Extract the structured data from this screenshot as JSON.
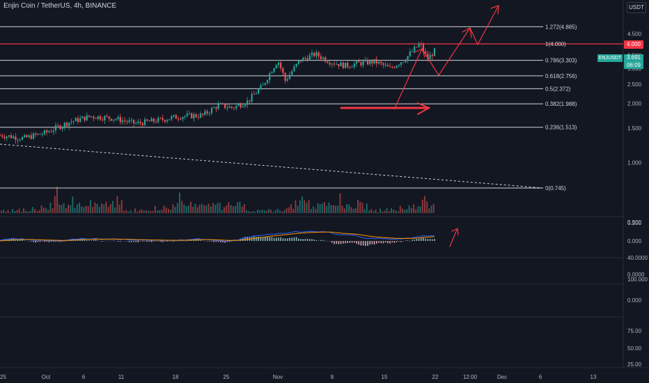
{
  "header": {
    "title": "Enjin Coin / TetherUS, 4h, BINANCE",
    "currency": "USDT"
  },
  "tags": {
    "price_level": "4.000",
    "symbol": "ENJUSDT",
    "last_price": "3.691",
    "countdown": "06:09"
  },
  "colors": {
    "background": "#131722",
    "up": "#26a69a",
    "down": "#ef5350",
    "annotation": "#f23645",
    "macd": "#2962ff",
    "signal": "#ff9800"
  },
  "chart_data": {
    "type": "candlestick",
    "symbol": "ENJUSDT",
    "timeframe": "4h",
    "x_tick_labels": [
      "25",
      "Oct",
      "6",
      "11",
      "18",
      "25",
      "Nov",
      "8",
      "15",
      "22",
      "12:00",
      "Dec",
      "6",
      "13"
    ],
    "price_axis_labels": [
      "4.500",
      "3.500",
      "3.000",
      "2.500",
      "2.000",
      "1.500",
      "1.000",
      "0.500"
    ],
    "price_scale": "log",
    "fib_levels": [
      {
        "label": "1.272(4.885)",
        "value": 4.885
      },
      {
        "label": "1(4.000)",
        "value": 4.0
      },
      {
        "label": "0.786(3.303)",
        "value": 3.303
      },
      {
        "label": "0.618(2.756)",
        "value": 2.756
      },
      {
        "label": "0.5(2.372)",
        "value": 2.372
      },
      {
        "label": "0.382(1.988)",
        "value": 1.988
      },
      {
        "label": "0.236(1.513)",
        "value": 1.513
      },
      {
        "label": "0(0.745)",
        "value": 0.745
      }
    ],
    "price_path": [
      {
        "date": "2021-09-25",
        "close": 1.38
      },
      {
        "date": "2021-09-28",
        "close": 1.33
      },
      {
        "date": "2021-10-01",
        "close": 1.42
      },
      {
        "date": "2021-10-04",
        "close": 1.6
      },
      {
        "date": "2021-10-07",
        "close": 1.72
      },
      {
        "date": "2021-10-10",
        "close": 1.68
      },
      {
        "date": "2021-10-13",
        "close": 1.58
      },
      {
        "date": "2021-10-16",
        "close": 1.64
      },
      {
        "date": "2021-10-19",
        "close": 1.72
      },
      {
        "date": "2021-10-22",
        "close": 1.74
      },
      {
        "date": "2021-10-24",
        "close": 1.95
      },
      {
        "date": "2021-10-26",
        "close": 1.9
      },
      {
        "date": "2021-10-28",
        "close": 2.05
      },
      {
        "date": "2021-10-30",
        "close": 2.45
      },
      {
        "date": "2021-11-01",
        "close": 3.3
      },
      {
        "date": "2021-11-02",
        "close": 2.6
      },
      {
        "date": "2021-11-04",
        "close": 3.3
      },
      {
        "date": "2021-11-06",
        "close": 3.55
      },
      {
        "date": "2021-11-08",
        "close": 3.25
      },
      {
        "date": "2021-11-10",
        "close": 3.1
      },
      {
        "date": "2021-11-12",
        "close": 3.2
      },
      {
        "date": "2021-11-14",
        "close": 3.25
      },
      {
        "date": "2021-11-16",
        "close": 3.0
      },
      {
        "date": "2021-11-18",
        "close": 3.35
      },
      {
        "date": "2021-11-20",
        "close": 4.0
      },
      {
        "date": "2021-11-21",
        "close": 3.35
      },
      {
        "date": "2021-11-22",
        "close": 3.691
      }
    ],
    "volume_pattern": [
      0.5,
      0.7,
      0.4,
      0.6,
      0.3,
      0.8,
      0.5,
      0.6,
      0.9,
      0.4,
      1.0,
      0.7,
      0.5,
      0.6,
      1.4,
      0.8,
      0.6,
      1.0,
      2.0,
      1.2,
      1.6,
      0.9,
      2.2,
      1.5,
      3.0,
      5.0,
      2.2,
      1.8,
      2.5,
      1.6,
      2.0,
      1.5,
      3.2,
      1.8,
      2.6,
      2.2,
      1.4,
      1.9,
      2.8,
      1.6,
      2.4,
      1.8,
      3.6,
      2.0,
      1.2,
      2.0,
      1.6,
      2.2,
      1.4,
      1.7,
      2.5,
      2.0,
      3.0,
      1.6,
      2.8
    ],
    "macd_axis_labels": [
      "0.200",
      "0.000"
    ],
    "rsi_axis_labels": [
      "40.0000",
      "0.0000"
    ],
    "panel4_axis_labels": [
      "100.000",
      "0.000"
    ],
    "panel5_axis_labels": [
      "75.00",
      "50.00",
      "25.00"
    ]
  }
}
